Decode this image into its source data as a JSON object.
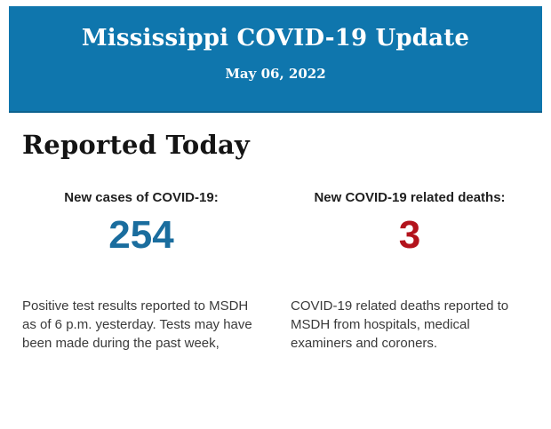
{
  "header": {
    "title": "Mississippi COVID-19 Update",
    "date": "May 06, 2022",
    "background_color": "#0f76ad",
    "text_color": "#ffffff"
  },
  "section": {
    "heading": "Reported Today"
  },
  "stats": [
    {
      "label": "New cases of COVID-19:",
      "value": "254",
      "value_color": "#1a6d9e",
      "description": "Positive test results reported to MSDH as of 6 p.m. yesterday. Tests may have been made during the past week,"
    },
    {
      "label": "New COVID-19 related deaths:",
      "value": "3",
      "value_color": "#b3131c",
      "description": "COVID-19 related deaths reported to MSDH from hospitals, medical examiners and coroners."
    }
  ]
}
